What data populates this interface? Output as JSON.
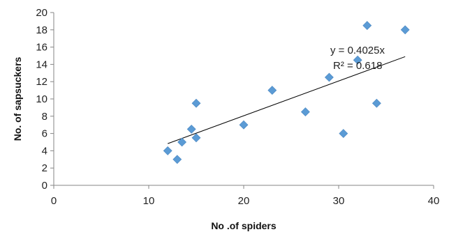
{
  "chart_data": {
    "type": "scatter",
    "title": "",
    "xlabel": "No .of spiders",
    "ylabel": "No. of sapsuckers",
    "xlim": [
      0,
      40
    ],
    "ylim": [
      0,
      20
    ],
    "xticks": [
      "0",
      "10",
      "20",
      "30",
      "40"
    ],
    "yticks": [
      "0",
      "2",
      "4",
      "6",
      "8",
      "10",
      "12",
      "14",
      "16",
      "18",
      "20"
    ],
    "grid": false,
    "legend": "none",
    "marker_color": "#5B9BD5",
    "marker_shape": "diamond",
    "series": [
      {
        "points": [
          {
            "x": 12,
            "y": 4
          },
          {
            "x": 13,
            "y": 3
          },
          {
            "x": 13.5,
            "y": 5
          },
          {
            "x": 14.5,
            "y": 6.5
          },
          {
            "x": 15,
            "y": 5.5
          },
          {
            "x": 15,
            "y": 9.5
          },
          {
            "x": 20,
            "y": 7
          },
          {
            "x": 23,
            "y": 11
          },
          {
            "x": 26.5,
            "y": 8.5
          },
          {
            "x": 29,
            "y": 12.5
          },
          {
            "x": 30.5,
            "y": 6
          },
          {
            "x": 32,
            "y": 14.5
          },
          {
            "x": 33,
            "y": 18.5
          },
          {
            "x": 34,
            "y": 9.5
          },
          {
            "x": 37,
            "y": 18
          }
        ]
      }
    ],
    "trendline": {
      "type": "linear",
      "slope": 0.4025,
      "x_start": 12,
      "x_end": 37,
      "color": "#000000"
    },
    "annotations": [
      {
        "text": "y = 0.4025x"
      },
      {
        "text": "R² = 0.618"
      }
    ]
  }
}
